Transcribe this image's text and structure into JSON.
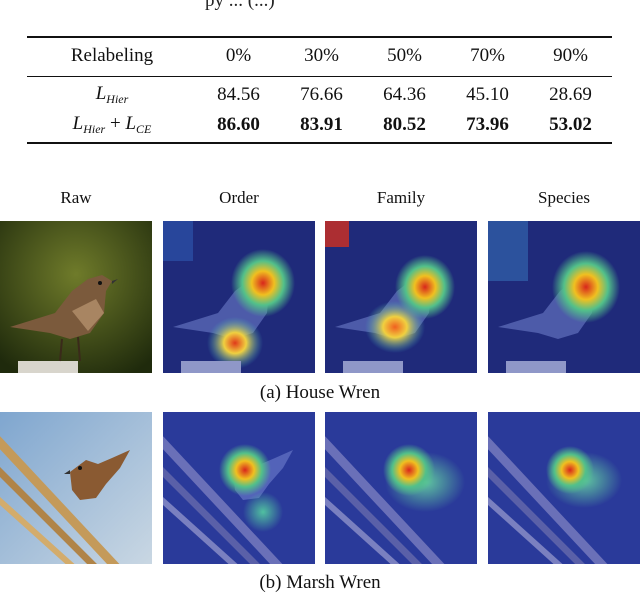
{
  "top_caption_fragment": "py ... (...)",
  "table": {
    "header": [
      "Relabeling",
      "0%",
      "30%",
      "50%",
      "70%",
      "90%"
    ],
    "rows": [
      {
        "label_main": "L",
        "label_sub": "Hier",
        "values": [
          "84.56",
          "76.66",
          "64.36",
          "45.10",
          "28.69"
        ],
        "bold": false
      },
      {
        "label_main": "L",
        "label_sub": "Hier",
        "label_plus": "+",
        "label_main2": "L",
        "label_sub2": "CE",
        "values": [
          "86.60",
          "83.91",
          "80.52",
          "73.96",
          "53.02"
        ],
        "bold": true
      }
    ]
  },
  "figure": {
    "column_headers": [
      "Raw",
      "Order",
      "Family",
      "Species"
    ],
    "captions": [
      "(a) House Wren",
      "(b) Marsh Wren"
    ]
  }
}
